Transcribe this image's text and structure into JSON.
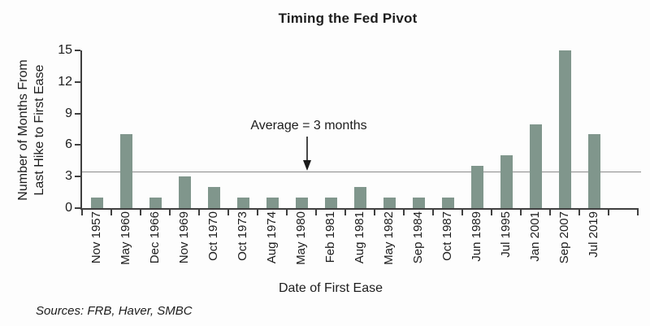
{
  "sources": "Sources: FRB, Haver, SMBC",
  "chart_data": {
    "type": "bar",
    "title": "Timing the Fed Pivot",
    "xlabel": "Date of First Ease",
    "ylabel_line1": "Number of Months From",
    "ylabel_line2": "Last Hike to First Ease",
    "categories": [
      "Nov 1957",
      "May 1960",
      "Dec 1966",
      "Nov 1969",
      "Oct 1970",
      "Oct 1973",
      "Aug 1974",
      "May 1980",
      "Feb 1981",
      "Aug 1981",
      "May 1982",
      "Sep 1984",
      "Oct 1987",
      "Jun 1989",
      "Jul 1995",
      "Jan 2001",
      "Sep 2007",
      "Jul 2019"
    ],
    "values": [
      1,
      7,
      1,
      3,
      2,
      1,
      1,
      1,
      1,
      2,
      1,
      1,
      1,
      4,
      5,
      8,
      15,
      7
    ],
    "ylim": [
      0,
      15
    ],
    "yticks": [
      0,
      3,
      6,
      9,
      12,
      15
    ],
    "grid": "off",
    "legend": "none",
    "annotation": "Average = 3 months",
    "average_line_value": 3.4,
    "bar_color": "#80968c",
    "axis_color": "#3f3f3f",
    "avg_line_color": "#8a8a8a"
  }
}
